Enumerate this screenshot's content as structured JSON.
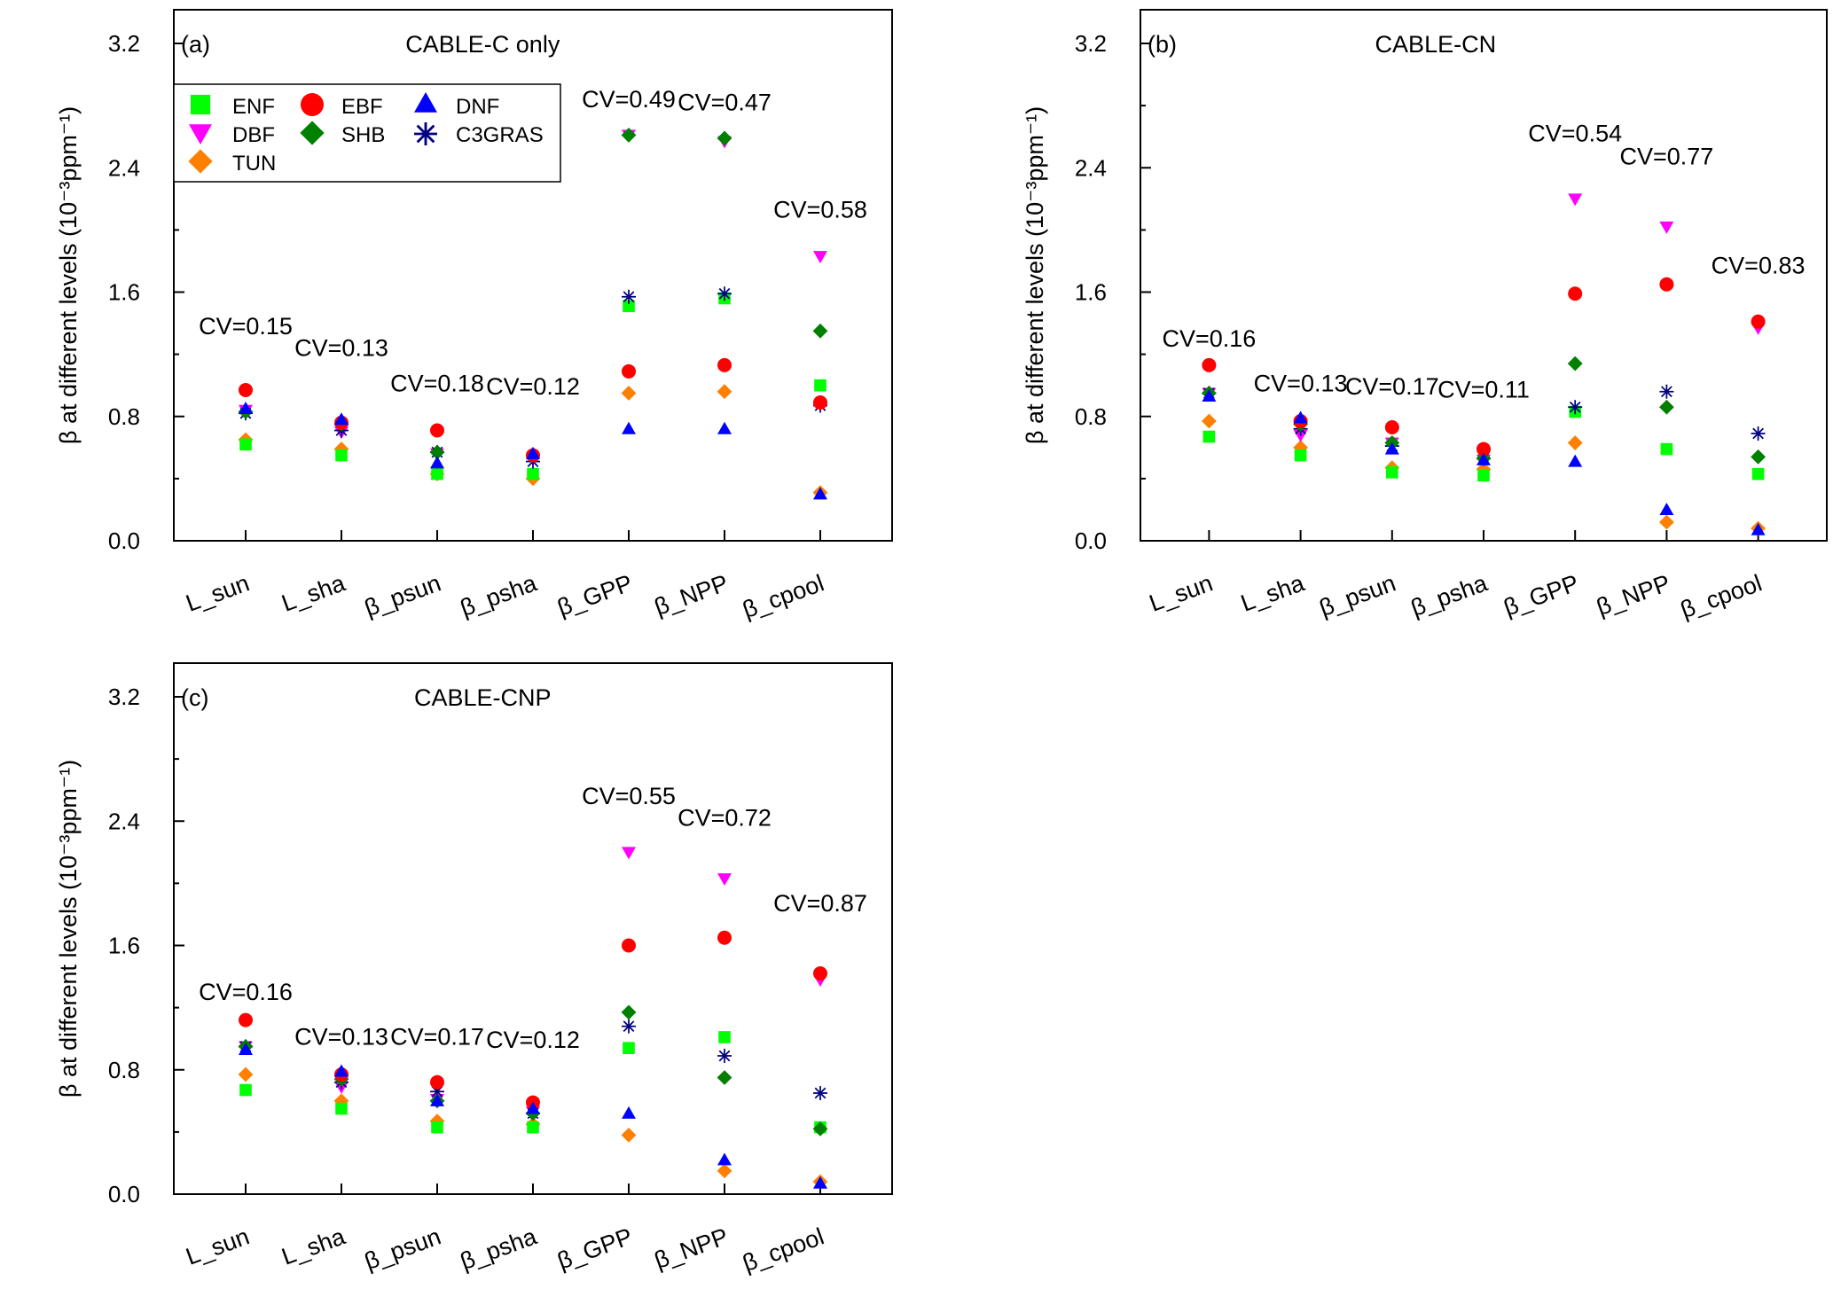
{
  "chart_data": [
    {
      "type": "scatter",
      "panel_label": "(a)",
      "title": "CABLE-C only",
      "ylabel": "β at different levels (10⁻³ppm⁻¹)",
      "ylim": [
        0,
        3.2
      ],
      "yticks": [
        "0.0",
        "0.8",
        "1.6",
        "2.4",
        "3.2"
      ],
      "categories": [
        "L_sun",
        "L_sha",
        "β_psun",
        "β_psha",
        "β_GPP",
        "β_NPP",
        "β_cpool"
      ],
      "cv_labels": [
        "CV=0.15",
        "CV=0.13",
        "CV=0.18",
        "CV=0.12",
        "CV=0.49",
        "CV=0.47",
        "CV=0.58"
      ],
      "cv_levels": [
        1.33,
        1.19,
        0.96,
        0.94,
        2.79,
        2.77,
        2.08
      ],
      "series": [
        {
          "name": "ENF",
          "values": [
            0.62,
            0.55,
            0.43,
            0.43,
            1.51,
            1.56,
            1.0
          ]
        },
        {
          "name": "EBF",
          "values": [
            0.97,
            0.76,
            0.71,
            0.55,
            1.09,
            1.13,
            0.89
          ]
        },
        {
          "name": "DNF",
          "values": [
            0.85,
            0.78,
            0.5,
            0.56,
            0.72,
            0.72,
            0.3
          ]
        },
        {
          "name": "DBF",
          "values": [
            0.84,
            0.7,
            0.56,
            0.53,
            2.61,
            2.57,
            1.83
          ]
        },
        {
          "name": "SHB",
          "values": [
            0.83,
            0.75,
            0.57,
            0.55,
            2.61,
            2.59,
            1.35
          ]
        },
        {
          "name": "C3GRAS",
          "values": [
            0.82,
            0.71,
            0.57,
            0.51,
            1.57,
            1.59,
            0.87
          ]
        },
        {
          "name": "TUN",
          "values": [
            0.65,
            0.59,
            0.43,
            0.4,
            0.95,
            0.96,
            0.31
          ]
        }
      ]
    },
    {
      "type": "scatter",
      "panel_label": "(b)",
      "title": "CABLE-CN",
      "ylabel": "β at different levels (10⁻³ppm⁻¹)",
      "ylim": [
        0,
        3.2
      ],
      "yticks": [
        "0.0",
        "0.8",
        "1.6",
        "2.4",
        "3.2"
      ],
      "categories": [
        "L_sun",
        "L_sha",
        "β_psun",
        "β_psha",
        "β_GPP",
        "β_NPP",
        "β_cpool"
      ],
      "cv_labels": [
        "CV=0.16",
        "CV=0.13",
        "CV=0.17",
        "CV=0.11",
        "CV=0.54",
        "CV=0.77",
        "CV=0.83"
      ],
      "cv_levels": [
        1.25,
        0.96,
        0.94,
        0.92,
        2.57,
        2.42,
        1.72
      ],
      "series": [
        {
          "name": "ENF",
          "values": [
            0.67,
            0.55,
            0.44,
            0.42,
            0.83,
            0.59,
            0.43
          ]
        },
        {
          "name": "EBF",
          "values": [
            1.13,
            0.77,
            0.73,
            0.59,
            1.59,
            1.65,
            1.41
          ]
        },
        {
          "name": "DNF",
          "values": [
            0.93,
            0.79,
            0.59,
            0.52,
            0.51,
            0.2,
            0.07
          ]
        },
        {
          "name": "DBF",
          "values": [
            0.95,
            0.68,
            0.63,
            0.52,
            2.2,
            2.02,
            1.37
          ]
        },
        {
          "name": "SHB",
          "values": [
            0.95,
            0.75,
            0.63,
            0.53,
            1.14,
            0.86,
            0.54
          ]
        },
        {
          "name": "C3GRAS",
          "values": [
            0.95,
            0.72,
            0.61,
            0.53,
            0.86,
            0.96,
            0.69
          ]
        },
        {
          "name": "TUN",
          "values": [
            0.77,
            0.6,
            0.47,
            0.46,
            0.63,
            0.12,
            0.08
          ]
        }
      ]
    },
    {
      "type": "scatter",
      "panel_label": "(c)",
      "title": "CABLE-CNP",
      "ylabel": "β at different levels (10⁻³ppm⁻¹)",
      "ylim": [
        0,
        3.2
      ],
      "yticks": [
        "0.0",
        "0.8",
        "1.6",
        "2.4",
        "3.2"
      ],
      "categories": [
        "L_sun",
        "L_sha",
        "β_psun",
        "β_psha",
        "β_GPP",
        "β_NPP",
        "β_cpool"
      ],
      "cv_labels": [
        "CV=0.16",
        "CV=0.13",
        "CV=0.17",
        "CV=0.12",
        "CV=0.55",
        "CV=0.72",
        "CV=0.87"
      ],
      "cv_levels": [
        1.25,
        0.96,
        0.96,
        0.94,
        2.51,
        2.37,
        1.82
      ],
      "series": [
        {
          "name": "ENF",
          "values": [
            0.67,
            0.55,
            0.43,
            0.43,
            0.94,
            1.01,
            0.43
          ]
        },
        {
          "name": "EBF",
          "values": [
            1.12,
            0.77,
            0.72,
            0.59,
            1.6,
            1.65,
            1.42
          ]
        },
        {
          "name": "DNF",
          "values": [
            0.93,
            0.79,
            0.6,
            0.55,
            0.52,
            0.22,
            0.07
          ]
        },
        {
          "name": "DBF",
          "values": [
            0.95,
            0.69,
            0.61,
            0.53,
            2.2,
            2.03,
            1.38
          ]
        },
        {
          "name": "SHB",
          "values": [
            0.95,
            0.74,
            0.6,
            0.52,
            1.17,
            0.75,
            0.42
          ]
        },
        {
          "name": "C3GRAS",
          "values": [
            0.95,
            0.72,
            0.66,
            0.52,
            1.08,
            0.89,
            0.65
          ]
        },
        {
          "name": "TUN",
          "values": [
            0.77,
            0.6,
            0.47,
            0.45,
            0.38,
            0.15,
            0.08
          ]
        }
      ]
    }
  ],
  "legend": {
    "entries": [
      "ENF",
      "EBF",
      "DNF",
      "DBF",
      "SHB",
      "C3GRAS",
      "TUN"
    ],
    "placement": "top-left of panel (a)"
  },
  "colors": {
    "ENF": "#00ff00",
    "EBF": "#ff0000",
    "DNF": "#0000ff",
    "DBF": "#ff00ff",
    "SHB": "#008000",
    "C3GRAS": "#000080",
    "TUN": "#ff8000"
  },
  "markers": {
    "ENF": "square",
    "EBF": "circle",
    "DNF": "triangle-up",
    "DBF": "triangle-down",
    "SHB": "diamond",
    "C3GRAS": "asterisk",
    "TUN": "diamond"
  }
}
